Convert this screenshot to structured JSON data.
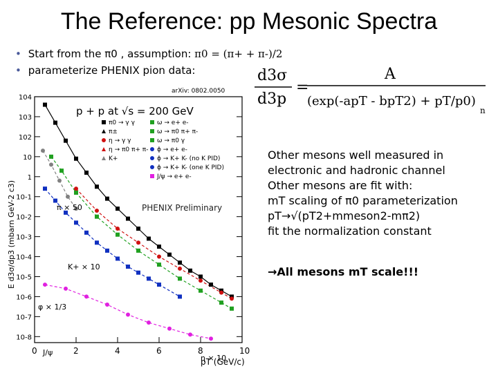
{
  "slide": {
    "title": "The Reference: pp Mesonic Spectra",
    "bullets": [
      {
        "text": "Start from the π0 , assumption: ",
        "formula": "π0 = (π+ + π-)/2"
      },
      {
        "text": "parameterize PHENIX pion data:"
      }
    ],
    "formula": {
      "lhs_num": "d3σ",
      "lhs_den": "d3p",
      "rhs_num": "A",
      "rhs_den": "(exp(-apT - bpT2) + pT/p0)",
      "exponent": "n"
    },
    "right_text": [
      "Other mesons well measured in",
      "electronic and hadronic channel",
      "Other mesons are fit with:",
      "mT scaling of π0 parameterization",
      "pT→√(pT2+mmeson2-mπ2)",
      "fit the normalization constant"
    ],
    "conclusion": "→All mesons mT scale!!!"
  },
  "chart_data": {
    "type": "scatter",
    "arxiv": "arXiv: 0802.0050",
    "title": "p + p at √s = 200 GeV",
    "watermark": "PHENIX Preliminary",
    "xlabel": "pT (GeV/c)",
    "ylabel": "E d3σ/dp3 (mbarn GeV-2 c3)",
    "xlim": [
      0,
      10
    ],
    "ylim_log10": [
      -8.3,
      4
    ],
    "log_y": true,
    "x_ticks": [
      "0",
      "2",
      "4",
      "6",
      "8",
      "10"
    ],
    "y_ticks": [
      "10-8",
      "10-7",
      "10-6",
      "10-5",
      "10-4",
      "10-3",
      "10-2",
      "10-1",
      "1",
      "10",
      "102",
      "103",
      "104"
    ],
    "scale_labels": [
      "π × 50",
      "K+ × 10",
      "φ × 1/3",
      "η × 10",
      "J/ψ"
    ],
    "legend": [
      {
        "label": "π0 → γ γ",
        "color": "#000000",
        "shape": "square"
      },
      {
        "label": "π±",
        "color": "#000000",
        "shape": "triangle"
      },
      {
        "label": "η → γ γ",
        "color": "#d01010",
        "shape": "circle"
      },
      {
        "label": "η → π0 π+ π-",
        "color": "#d01010",
        "shape": "triangle"
      },
      {
        "label": "K+",
        "color": "#808080",
        "shape": "triangle"
      },
      {
        "label": "ω → e+ e-",
        "color": "#20a020",
        "shape": "square"
      },
      {
        "label": "ω → π0 π+ π-",
        "color": "#20a020",
        "shape": "square"
      },
      {
        "label": "ω → π0 γ",
        "color": "#20a020",
        "shape": "square"
      },
      {
        "label": "ϕ → e+ e-",
        "color": "#1030c0",
        "shape": "circle"
      },
      {
        "label": "ϕ → K+ K- (no K PID)",
        "color": "#1030c0",
        "shape": "circle"
      },
      {
        "label": "ϕ → K+ K- (one K PID)",
        "color": "#1030c0",
        "shape": "circle"
      },
      {
        "label": "J/ψ → e+ e-",
        "color": "#e020e0",
        "shape": "square"
      }
    ],
    "series": [
      {
        "name": "π × 50",
        "color": "#000000",
        "x": [
          0.5,
          1,
          1.5,
          2,
          2.5,
          3,
          3.5,
          4,
          4.5,
          5,
          5.5,
          6,
          6.5,
          7,
          7.5,
          8,
          8.5,
          9,
          9.5
        ],
        "log10y": [
          3.6,
          2.7,
          1.8,
          0.9,
          0.2,
          -0.5,
          -1.1,
          -1.6,
          -2.1,
          -2.6,
          -3.1,
          -3.5,
          -3.9,
          -4.3,
          -4.7,
          -5.0,
          -5.4,
          -5.7,
          -6.0
        ]
      },
      {
        "name": "η × 10",
        "color": "#d01010",
        "x": [
          2,
          3,
          4,
          5,
          6,
          7,
          8,
          9,
          9.5
        ],
        "log10y": [
          -0.6,
          -1.7,
          -2.6,
          -3.3,
          -4.0,
          -4.6,
          -5.2,
          -5.8,
          -6.1
        ]
      },
      {
        "name": "ω",
        "color": "#20a020",
        "x": [
          0.8,
          1.3,
          2,
          3,
          4,
          5,
          6,
          7,
          8,
          9,
          9.5
        ],
        "log10y": [
          1.0,
          0.3,
          -0.8,
          -2.0,
          -2.9,
          -3.7,
          -4.4,
          -5.1,
          -5.7,
          -6.3,
          -6.6
        ]
      },
      {
        "name": "K+ × 10",
        "color": "#808080",
        "x": [
          0.4,
          0.8,
          1.2,
          1.6,
          2.0
        ],
        "log10y": [
          1.3,
          0.6,
          -0.2,
          -1.0,
          -1.6
        ]
      },
      {
        "name": "φ × 1/3",
        "color": "#1030c0",
        "x": [
          0.5,
          1,
          1.5,
          2,
          2.5,
          3,
          3.5,
          4,
          4.5,
          5,
          5.5,
          6,
          7
        ],
        "log10y": [
          -0.6,
          -1.2,
          -1.8,
          -2.3,
          -2.8,
          -3.3,
          -3.7,
          -4.1,
          -4.5,
          -4.8,
          -5.1,
          -5.4,
          -6.0
        ]
      },
      {
        "name": "J/ψ",
        "color": "#e020e0",
        "x": [
          0.5,
          1.5,
          2.5,
          3.5,
          4.5,
          5.5,
          6.5,
          7.5,
          8.5
        ],
        "log10y": [
          -5.4,
          -5.6,
          -6.0,
          -6.4,
          -6.9,
          -7.3,
          -7.6,
          -7.9,
          -8.1
        ]
      }
    ]
  }
}
